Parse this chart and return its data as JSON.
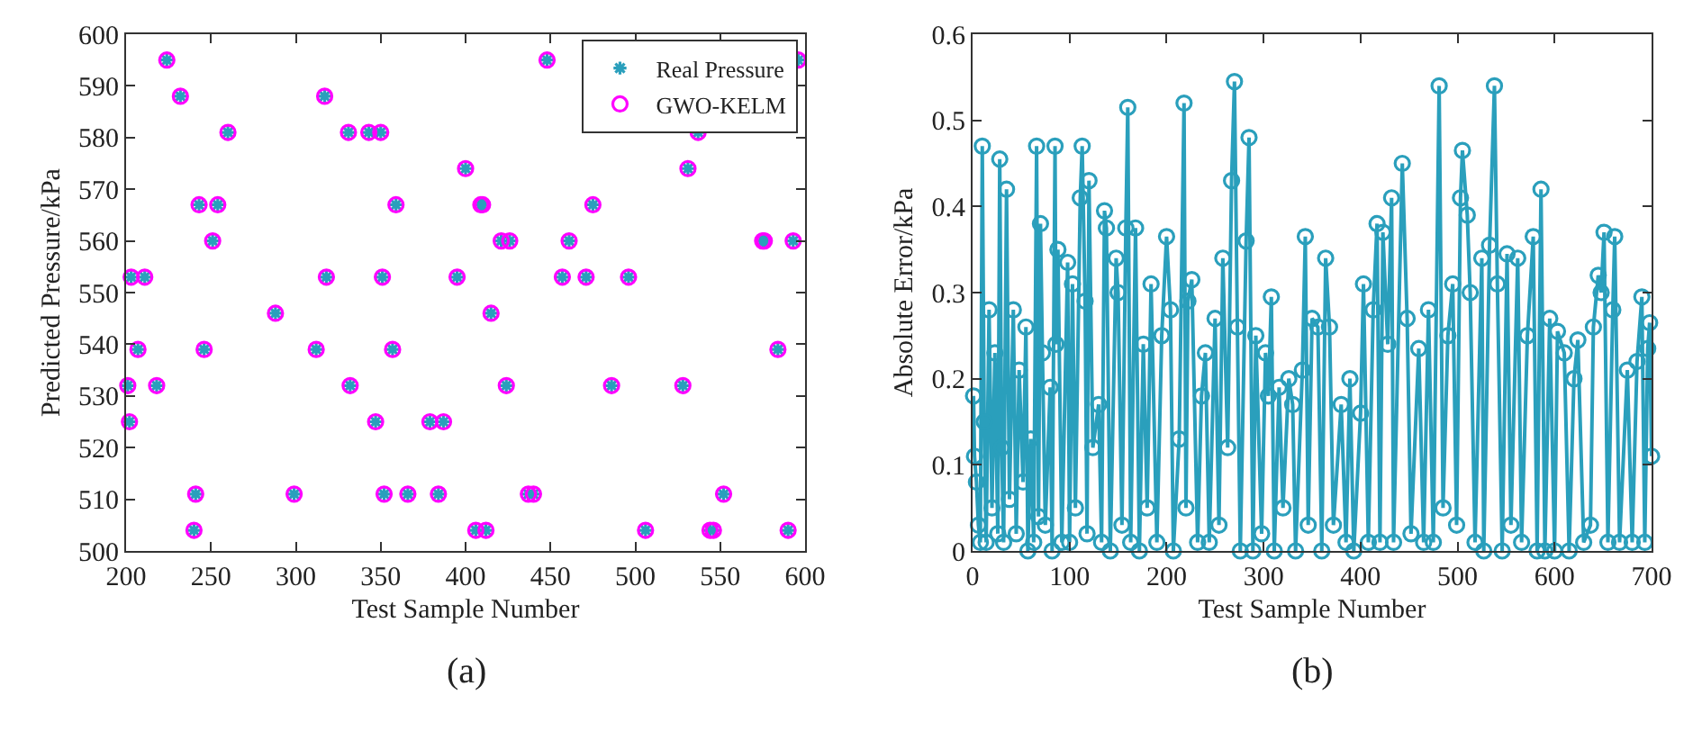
{
  "chart_data": [
    {
      "type": "scatter",
      "xlabel": "Test Sample Number",
      "ylabel": "Predicted Pressure/kPa",
      "annotations": [
        "(a)"
      ],
      "xlim": [
        200,
        600
      ],
      "xticks": [
        200,
        250,
        300,
        350,
        400,
        450,
        500,
        550,
        600
      ],
      "ylim": [
        500,
        600
      ],
      "yticks": [
        500,
        510,
        520,
        530,
        540,
        550,
        560,
        570,
        580,
        590,
        600
      ],
      "grid": false,
      "legend": "top right",
      "x": [
        201,
        202,
        203,
        207,
        211,
        218,
        224,
        232,
        240,
        241,
        243,
        246,
        251,
        254,
        260,
        288,
        299,
        312,
        317,
        318,
        331,
        332,
        343,
        347,
        350,
        351,
        352,
        357,
        359,
        366,
        379,
        384,
        387,
        395,
        400,
        406,
        409,
        410,
        412,
        415,
        421,
        424,
        426,
        437,
        440,
        448,
        457,
        461,
        471,
        475,
        486,
        496,
        506,
        528,
        531,
        537,
        544,
        546,
        552,
        575,
        576,
        584,
        590,
        593,
        596
      ],
      "series": [
        {
          "name": "Real Pressure",
          "color": "#2a9fbc",
          "marker": "cross",
          "values": [
            532,
            525,
            553,
            539,
            553,
            532,
            595,
            588,
            504,
            511,
            567,
            539,
            560,
            567,
            581,
            546,
            511,
            539,
            588,
            553,
            581,
            532,
            581,
            525,
            581,
            553,
            511,
            539,
            567,
            511,
            525,
            511,
            525,
            553,
            574,
            504,
            567,
            567,
            504,
            546,
            560,
            532,
            560,
            511,
            511,
            595,
            553,
            560,
            553,
            567,
            532,
            553,
            504,
            532,
            574,
            581,
            504,
            504,
            511,
            560,
            560,
            539,
            504,
            560,
            595
          ]
        },
        {
          "name": "GWO-KELM",
          "color": "#ff00ff",
          "marker": "circle",
          "values": [
            532,
            525,
            553,
            539,
            553,
            532,
            595,
            588,
            504,
            511,
            567,
            539,
            560,
            567,
            581,
            546,
            511,
            539,
            588,
            553,
            581,
            532,
            581,
            525,
            581,
            553,
            511,
            539,
            567,
            511,
            525,
            511,
            525,
            553,
            574,
            504,
            567,
            567,
            504,
            546,
            560,
            532,
            560,
            511,
            511,
            595,
            553,
            560,
            553,
            567,
            532,
            553,
            504,
            532,
            574,
            581,
            504,
            504,
            511,
            560,
            560,
            539,
            504,
            560,
            595
          ]
        }
      ]
    },
    {
      "type": "line",
      "xlabel": "Test Sample Number",
      "ylabel": "Absolute Error/kPa",
      "annotations": [
        "(b)"
      ],
      "xlim": [
        0,
        700
      ],
      "xticks": [
        0,
        100,
        200,
        300,
        400,
        500,
        600,
        700
      ],
      "ylim": [
        0,
        0.6
      ],
      "yticks": [
        0,
        0.1,
        0.2,
        0.3,
        0.4,
        0.5,
        0.6
      ],
      "grid": false,
      "legend": false,
      "marker": "circle",
      "line_style": "solid",
      "series": [
        {
          "color": "#2a9fbc",
          "x": [
            1,
            2,
            4,
            6,
            8,
            10,
            12,
            14,
            17,
            20,
            23,
            26,
            28,
            30,
            32,
            35,
            38,
            42,
            45,
            48,
            52,
            55,
            57,
            60,
            63,
            66,
            68,
            70,
            72,
            75,
            80,
            82,
            85,
            86,
            88,
            92,
            98,
            100,
            103,
            106,
            111,
            113,
            116,
            118,
            120,
            124,
            130,
            133,
            136,
            138,
            142,
            148,
            150,
            154,
            158,
            160,
            163,
            168,
            172,
            176,
            180,
            184,
            190,
            195,
            200,
            204,
            207,
            213,
            218,
            220,
            222,
            226,
            232,
            236,
            240,
            244,
            250,
            254,
            258,
            263,
            267,
            270,
            273,
            276,
            282,
            285,
            289,
            292,
            298,
            302,
            305,
            308,
            311,
            316,
            320,
            326,
            330,
            333,
            340,
            343,
            346,
            350,
            356,
            360,
            364,
            368,
            372,
            380,
            385,
            389,
            393,
            400,
            403,
            408,
            413,
            417,
            420,
            423,
            428,
            432,
            434,
            443,
            448,
            452,
            460,
            465,
            470,
            475,
            481,
            485,
            490,
            495,
            499,
            503,
            505,
            510,
            513,
            518,
            525,
            527,
            533,
            538,
            541,
            546,
            551,
            555,
            562,
            566,
            572,
            578,
            582,
            586,
            590,
            595,
            600,
            603,
            610,
            615,
            620,
            624,
            630,
            637,
            640,
            645,
            648,
            651,
            655,
            660,
            662,
            667,
            675,
            680,
            685,
            690,
            693,
            696,
            698,
            700
          ],
          "values": [
            0.18,
            0.11,
            0.08,
            0.03,
            0.01,
            0.47,
            0.15,
            0.01,
            0.28,
            0.05,
            0.23,
            0.02,
            0.455,
            0.12,
            0.01,
            0.42,
            0.06,
            0.28,
            0.02,
            0.21,
            0.08,
            0.26,
            0,
            0.13,
            0.01,
            0.47,
            0.04,
            0.38,
            0.23,
            0.03,
            0.19,
            0,
            0.47,
            0.24,
            0.35,
            0.01,
            0.335,
            0.01,
            0.31,
            0.05,
            0.41,
            0.47,
            0.29,
            0.02,
            0.43,
            0.12,
            0.17,
            0.01,
            0.395,
            0.375,
            0,
            0.34,
            0.3,
            0.03,
            0.375,
            0.515,
            0.01,
            0.375,
            0,
            0.24,
            0.05,
            0.31,
            0.01,
            0.25,
            0.365,
            0.28,
            0,
            0.13,
            0.52,
            0.05,
            0.29,
            0.315,
            0.01,
            0.18,
            0.23,
            0.01,
            0.27,
            0.03,
            0.34,
            0.12,
            0.43,
            0.545,
            0.26,
            0,
            0.36,
            0.48,
            0,
            0.25,
            0.02,
            0.23,
            0.18,
            0.295,
            0,
            0.19,
            0.05,
            0.2,
            0.17,
            0,
            0.21,
            0.365,
            0.03,
            0.27,
            0.26,
            0,
            0.34,
            0.26,
            0.03,
            0.17,
            0.01,
            0.2,
            0,
            0.16,
            0.31,
            0.01,
            0.28,
            0.38,
            0.01,
            0.37,
            0.24,
            0.41,
            0.01,
            0.45,
            0.27,
            0.02,
            0.235,
            0.01,
            0.28,
            0.01,
            0.54,
            0.05,
            0.25,
            0.31,
            0.03,
            0.41,
            0.465,
            0.39,
            0.3,
            0.01,
            0.34,
            0,
            0.355,
            0.54,
            0.31,
            0,
            0.345,
            0.03,
            0.34,
            0.01,
            0.25,
            0.365,
            0,
            0.42,
            0,
            0.27,
            0,
            0.255,
            0.23,
            0,
            0.2,
            0.245,
            0.01,
            0.03,
            0.26,
            0.32,
            0.3,
            0.37,
            0.01,
            0.28,
            0.365,
            0.01,
            0.21,
            0.01,
            0.22,
            0.295,
            0.01,
            0.235,
            0.265,
            0.11
          ]
        }
      ]
    }
  ]
}
